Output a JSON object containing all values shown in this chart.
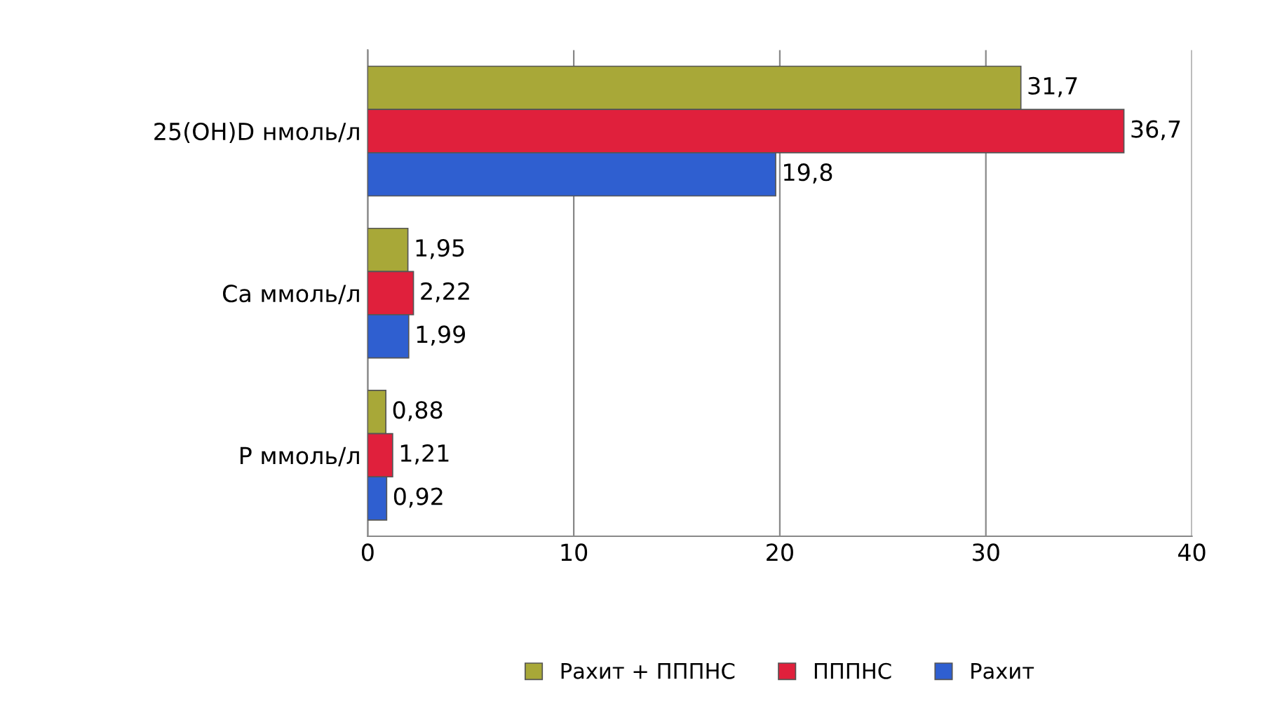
{
  "chart_data": {
    "type": "bar",
    "orientation": "horizontal",
    "categories": [
      "25(OH)D нмоль/л",
      "Ca ммоль/л",
      "P ммоль/л"
    ],
    "series": [
      {
        "name": "Рахит + ПППНС",
        "color": "#a8a838",
        "values": [
          31.7,
          1.95,
          0.88
        ],
        "value_labels": [
          "31,7",
          "1,95",
          "0,88"
        ]
      },
      {
        "name": "ПППНС",
        "color": "#e0203c",
        "values": [
          36.7,
          2.22,
          1.21
        ],
        "value_labels": [
          "36,7",
          "2,22",
          "1,21"
        ]
      },
      {
        "name": "Рахит",
        "color": "#2f5fd0",
        "values": [
          19.8,
          1.99,
          0.92
        ],
        "value_labels": [
          "19,8",
          "1,99",
          "0,92"
        ]
      }
    ],
    "xlim": [
      0,
      40
    ],
    "xticks": [
      0,
      10,
      20,
      30,
      40
    ],
    "grid": "x",
    "legend": "bottom"
  }
}
